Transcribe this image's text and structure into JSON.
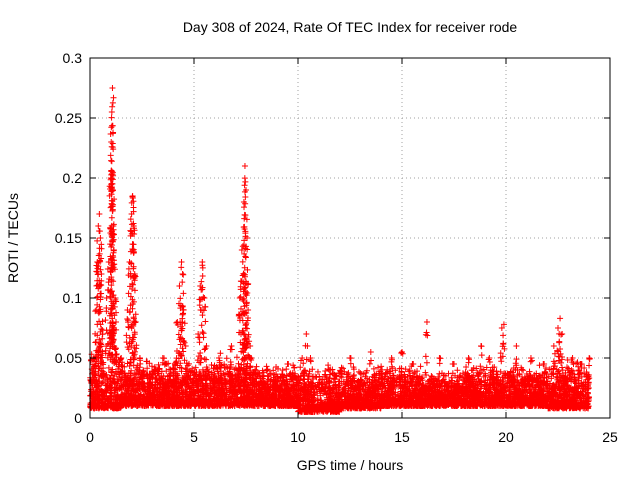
{
  "chart_data": {
    "type": "scatter",
    "title": "Day 308 of 2024, Rate Of TEC Index for receiver rode",
    "xlabel": "GPS time / hours",
    "ylabel": "ROTI / TECUs",
    "xlim": [
      0,
      25
    ],
    "ylim": [
      0,
      0.3
    ],
    "x_ticks": [
      0,
      5,
      10,
      15,
      20,
      25
    ],
    "y_ticks": [
      0,
      0.05,
      0.1,
      0.15,
      0.2,
      0.25,
      0.3
    ],
    "x_tick_labels": [
      "0",
      "5",
      "10",
      "15",
      "20",
      "25"
    ],
    "y_tick_labels": [
      "0",
      "0.05",
      "0.1",
      "0.15",
      "0.2",
      "0.25",
      "0.3"
    ],
    "grid": true,
    "marker": "+",
    "series": [
      {
        "name": "ROTI",
        "color": "#ff0000",
        "points": [
          [
            0.1,
            0.02
          ],
          [
            0.2,
            0.05
          ],
          [
            0.3,
            0.09
          ],
          [
            0.35,
            0.13
          ],
          [
            0.4,
            0.16
          ],
          [
            0.45,
            0.17
          ],
          [
            0.5,
            0.15
          ],
          [
            0.55,
            0.12
          ],
          [
            0.6,
            0.07
          ],
          [
            0.8,
            0.1
          ],
          [
            0.9,
            0.13
          ],
          [
            1.0,
            0.2
          ],
          [
            1.02,
            0.23
          ],
          [
            1.05,
            0.255
          ],
          [
            1.08,
            0.275
          ],
          [
            1.1,
            0.19
          ],
          [
            1.12,
            0.16
          ],
          [
            1.15,
            0.14
          ],
          [
            1.2,
            0.1
          ],
          [
            1.25,
            0.08
          ],
          [
            1.5,
            0.05
          ],
          [
            1.8,
            0.09
          ],
          [
            1.9,
            0.13
          ],
          [
            2.0,
            0.17
          ],
          [
            2.05,
            0.185
          ],
          [
            2.1,
            0.16
          ],
          [
            2.15,
            0.12
          ],
          [
            2.2,
            0.08
          ],
          [
            2.4,
            0.05
          ],
          [
            3.5,
            0.05
          ],
          [
            4.2,
            0.08
          ],
          [
            4.3,
            0.11
          ],
          [
            4.4,
            0.13
          ],
          [
            4.45,
            0.12
          ],
          [
            4.5,
            0.09
          ],
          [
            4.6,
            0.06
          ],
          [
            5.2,
            0.07
          ],
          [
            5.3,
            0.11
          ],
          [
            5.4,
            0.13
          ],
          [
            5.5,
            0.1
          ],
          [
            5.6,
            0.06
          ],
          [
            6.2,
            0.05
          ],
          [
            6.8,
            0.06
          ],
          [
            7.2,
            0.1
          ],
          [
            7.3,
            0.14
          ],
          [
            7.4,
            0.18
          ],
          [
            7.45,
            0.21
          ],
          [
            7.5,
            0.19
          ],
          [
            7.55,
            0.15
          ],
          [
            7.6,
            0.09
          ],
          [
            7.7,
            0.06
          ],
          [
            8.5,
            0.04
          ],
          [
            9.5,
            0.045
          ],
          [
            10.2,
            0.05
          ],
          [
            10.4,
            0.07
          ],
          [
            10.6,
            0.05
          ],
          [
            11.5,
            0.04
          ],
          [
            12.5,
            0.05
          ],
          [
            13.5,
            0.055
          ],
          [
            14.5,
            0.05
          ],
          [
            15.0,
            0.055
          ],
          [
            15.5,
            0.045
          ],
          [
            16.2,
            0.08
          ],
          [
            16.8,
            0.05
          ],
          [
            17.5,
            0.045
          ],
          [
            18.2,
            0.05
          ],
          [
            18.8,
            0.06
          ],
          [
            19.2,
            0.05
          ],
          [
            19.8,
            0.075
          ],
          [
            19.9,
            0.078
          ],
          [
            20.5,
            0.06
          ],
          [
            21.2,
            0.05
          ],
          [
            21.8,
            0.045
          ],
          [
            22.3,
            0.06
          ],
          [
            22.5,
            0.075
          ],
          [
            22.6,
            0.083
          ],
          [
            22.7,
            0.07
          ],
          [
            23.2,
            0.05
          ],
          [
            23.6,
            0.045
          ],
          [
            24.0,
            0.05
          ]
        ],
        "baseline_bands": [
          {
            "x_start": 0.0,
            "x_end": 1.5,
            "low": 0.008,
            "high": 0.055
          },
          {
            "x_start": 1.5,
            "x_end": 3.0,
            "low": 0.01,
            "high": 0.05
          },
          {
            "x_start": 3.0,
            "x_end": 6.0,
            "low": 0.01,
            "high": 0.05
          },
          {
            "x_start": 6.0,
            "x_end": 8.0,
            "low": 0.01,
            "high": 0.055
          },
          {
            "x_start": 8.0,
            "x_end": 10.0,
            "low": 0.01,
            "high": 0.045
          },
          {
            "x_start": 10.0,
            "x_end": 12.0,
            "low": 0.005,
            "high": 0.045
          },
          {
            "x_start": 12.0,
            "x_end": 14.0,
            "low": 0.008,
            "high": 0.045
          },
          {
            "x_start": 14.0,
            "x_end": 16.0,
            "low": 0.01,
            "high": 0.045
          },
          {
            "x_start": 16.0,
            "x_end": 18.0,
            "low": 0.01,
            "high": 0.04
          },
          {
            "x_start": 18.0,
            "x_end": 20.0,
            "low": 0.01,
            "high": 0.045
          },
          {
            "x_start": 20.0,
            "x_end": 22.0,
            "low": 0.01,
            "high": 0.045
          },
          {
            "x_start": 22.0,
            "x_end": 24.0,
            "low": 0.008,
            "high": 0.05
          }
        ]
      }
    ]
  }
}
